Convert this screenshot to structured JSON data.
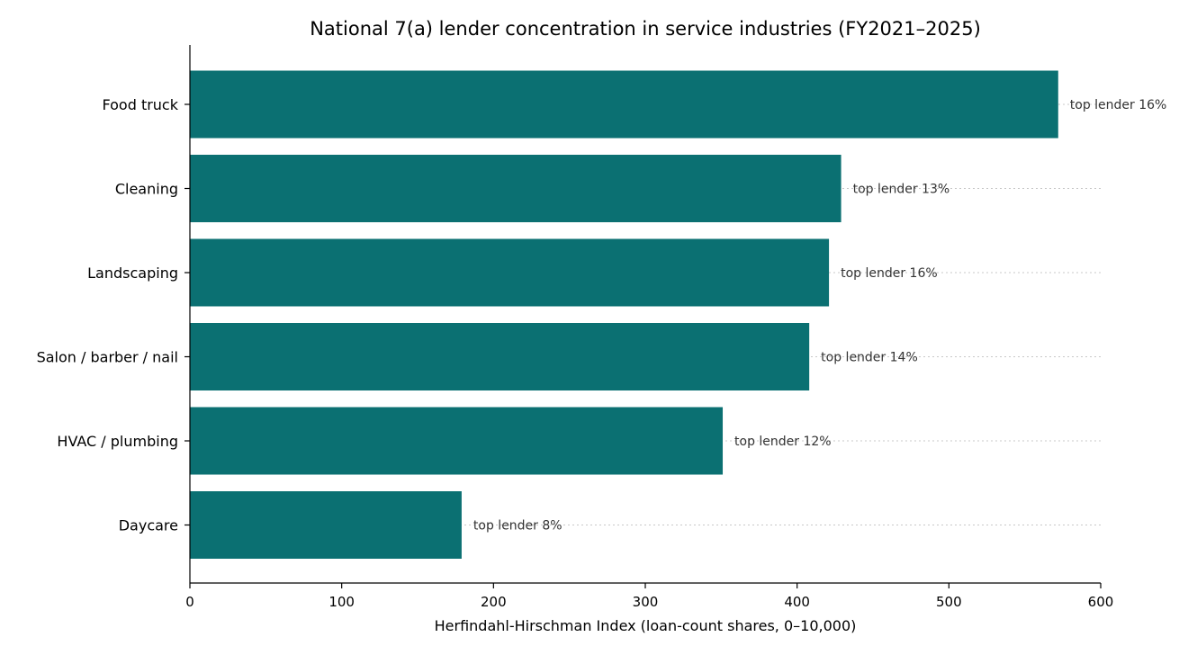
{
  "chart_data": {
    "type": "bar",
    "orientation": "horizontal",
    "title": "National 7(a) lender concentration in service industries (FY2021–2025)",
    "xlabel": "Herfindahl-Hirschman Index (loan-count shares, 0–10,000)",
    "ylabel": "",
    "xlim": [
      0,
      600
    ],
    "xticks": [
      0,
      100,
      200,
      300,
      400,
      500,
      600
    ],
    "categories": [
      "Food truck",
      "Cleaning",
      "Landscaping",
      "Salon / barber / nail",
      "HVAC / plumbing",
      "Daycare"
    ],
    "values": [
      572,
      429,
      421,
      408,
      351,
      179
    ],
    "data_labels": [
      "top lender 16%",
      "top lender 13%",
      "top lender 16%",
      "top lender 14%",
      "top lender 12%",
      "top lender 8%"
    ],
    "bar_color": "#0b7072",
    "grid": "dotted horizontal lines at bar centers",
    "legend": "none"
  }
}
